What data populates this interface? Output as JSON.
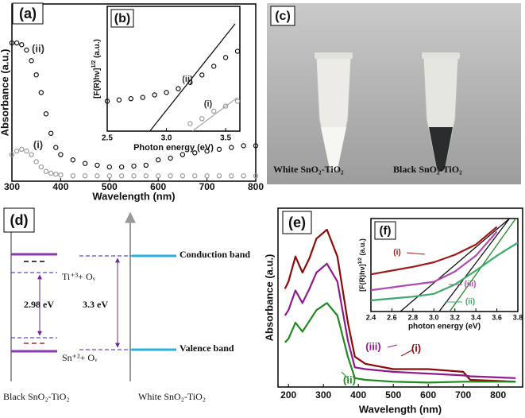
{
  "chart_data": [
    {
      "type": "scatter",
      "panel": "(a)",
      "xlabel": "Wavelength (nm)",
      "ylabel": "Absorbance (a.u.)",
      "x": [
        300,
        310,
        320,
        330,
        340,
        350,
        360,
        370,
        380,
        390,
        400,
        425,
        450,
        475,
        500,
        525,
        550,
        575,
        600,
        625,
        650,
        675,
        700,
        725,
        750,
        775,
        800
      ],
      "xlim": [
        300,
        800
      ],
      "xticks": [
        300,
        400,
        500,
        600,
        700,
        800
      ],
      "ylim": [
        0,
        1
      ],
      "series": [
        {
          "name": "(i)",
          "color": "#9a9a9a",
          "values": [
            0.15,
            0.17,
            0.18,
            0.17,
            0.15,
            0.11,
            0.08,
            0.055,
            0.045,
            0.04,
            0.035,
            0.03,
            0.03,
            0.03,
            0.03,
            0.03,
            0.03,
            0.03,
            0.03,
            0.03,
            0.03,
            0.03,
            0.03,
            0.03,
            0.03,
            0.03,
            0.03
          ]
        },
        {
          "name": "(ii)",
          "color": "#111111",
          "values": [
            0.78,
            0.78,
            0.77,
            0.74,
            0.68,
            0.6,
            0.5,
            0.38,
            0.27,
            0.19,
            0.15,
            0.12,
            0.1,
            0.09,
            0.08,
            0.08,
            0.085,
            0.09,
            0.12,
            0.13,
            0.15,
            0.16,
            0.17,
            0.18,
            0.19,
            0.2,
            0.2
          ]
        }
      ]
    },
    {
      "type": "scatter",
      "panel": "(b)",
      "xlabel": "Photon energy (eV)",
      "ylabel": {
        "main": "[F(R)hν]",
        "sup": "1/2",
        "unit": " (a.u.)"
      },
      "x": [
        2.5,
        2.6,
        2.7,
        2.8,
        2.9,
        3.0,
        3.1,
        3.2,
        3.3,
        3.4,
        3.5,
        3.6
      ],
      "xlim": [
        2.5,
        3.62
      ],
      "xticks": [
        {
          "value": 2.5,
          "label": "2.5"
        },
        {
          "value": 3.0,
          "label": "3.0"
        },
        {
          "value": 3.5,
          "label": "3.5"
        }
      ],
      "ylim": [
        0,
        1
      ],
      "series": [
        {
          "name": "(i)",
          "color": "#9a9a9a",
          "values": [
            null,
            null,
            null,
            null,
            null,
            null,
            null,
            0.06,
            0.1,
            0.16,
            0.2,
            0.24
          ]
        },
        {
          "name": "(ii)",
          "color": "#111111",
          "values": [
            0.24,
            0.25,
            0.26,
            0.27,
            0.29,
            0.31,
            0.34,
            0.39,
            0.45,
            0.52,
            0.59,
            0.64
          ]
        }
      ],
      "fits": [
        {
          "color": "#111111",
          "x": [
            2.86,
            3.58
          ],
          "y": [
            0,
            0.86
          ]
        },
        {
          "color": "#aaaaaa",
          "x": [
            3.22,
            3.6
          ],
          "y": [
            0,
            0.27
          ]
        }
      ]
    },
    {
      "type": "line",
      "panel": "(e)",
      "xlabel": "Wavelength (nm)",
      "ylabel": "Absorbance (a.u.)",
      "x": [
        190,
        200,
        220,
        240,
        260,
        280,
        310,
        340,
        370,
        390,
        420,
        500,
        600,
        700,
        720,
        850
      ],
      "xlim": [
        170,
        870
      ],
      "xticks": [
        200,
        300,
        400,
        500,
        600,
        700,
        800
      ],
      "ylim": [
        0,
        1
      ],
      "series": [
        {
          "name": "(i)",
          "color": "#8b0a0a",
          "values": [
            0.55,
            0.59,
            0.73,
            0.64,
            0.72,
            0.83,
            0.88,
            0.73,
            0.36,
            0.17,
            0.13,
            0.1,
            0.1,
            0.085,
            0.04,
            0.03
          ]
        },
        {
          "name": "(iii)",
          "color": "#8e1a8e",
          "values": [
            0.4,
            0.43,
            0.54,
            0.47,
            0.55,
            0.64,
            0.69,
            0.59,
            0.26,
            0.11,
            0.1,
            0.085,
            0.075,
            0.065,
            0.06,
            0.05
          ]
        },
        {
          "name": "(ii)",
          "color": "#1f8b1f",
          "values": [
            0.25,
            0.27,
            0.36,
            0.31,
            0.37,
            0.43,
            0.47,
            0.4,
            0.17,
            0.05,
            0.04,
            0.03,
            0.025,
            0.03,
            0.03,
            0.03
          ]
        }
      ]
    },
    {
      "type": "line",
      "panel": "(f)",
      "xlabel": "photon energy (eV)",
      "ylabel": {
        "main": "[F(R)hν]",
        "sup": "1/2",
        "unit": " (a.u.)"
      },
      "x": [
        2.4,
        2.6,
        2.8,
        3.0,
        3.2,
        3.4,
        3.6,
        3.8
      ],
      "xlim": [
        2.4,
        3.8
      ],
      "xticks": [
        2.4,
        2.6,
        2.8,
        {
          "value": 3.0,
          "label": "3.0"
        },
        3.2,
        3.4,
        3.6,
        3.8
      ],
      "ylim": [
        0,
        1
      ],
      "series": [
        {
          "name": "(i)",
          "color": "#a01818",
          "values": [
            0.4,
            0.44,
            0.48,
            0.53,
            0.61,
            0.72,
            0.91,
            null
          ]
        },
        {
          "name": "(iii)",
          "color": "#b04ab0",
          "values": [
            0.23,
            0.26,
            0.29,
            0.32,
            0.43,
            0.6,
            0.86,
            null
          ]
        },
        {
          "name": "(ii)",
          "color": "#3caa6a",
          "values": [
            0.12,
            0.14,
            0.16,
            0.19,
            0.29,
            0.44,
            0.6,
            0.74
          ]
        }
      ],
      "fits": [
        {
          "color": "#111111",
          "x": [
            2.68,
            3.72
          ],
          "y": [
            0,
            1
          ]
        },
        {
          "color": "#111111",
          "x": [
            3.05,
            3.72
          ],
          "y": [
            0,
            1
          ]
        },
        {
          "color": "#1f8b1f",
          "x": [
            3.15,
            3.78
          ],
          "y": [
            0,
            1
          ]
        }
      ]
    }
  ],
  "photo": {
    "panel": "(c)",
    "labels": [
      "White SnO₂-TiO₂",
      "Black SnO₂-TiO₂"
    ]
  },
  "diagram": {
    "panel": "(d)",
    "levels": [
      "Ti⁺³+ Oᵥ",
      "Sn⁺²+ Oᵥ"
    ],
    "gaps": [
      "2.98 eV",
      "3.3 eV"
    ],
    "bands": [
      "Conduction band",
      "Valence band"
    ],
    "materials": [
      "Black SnO₂-TiO₂",
      "White SnO₂-TiO₂"
    ]
  }
}
